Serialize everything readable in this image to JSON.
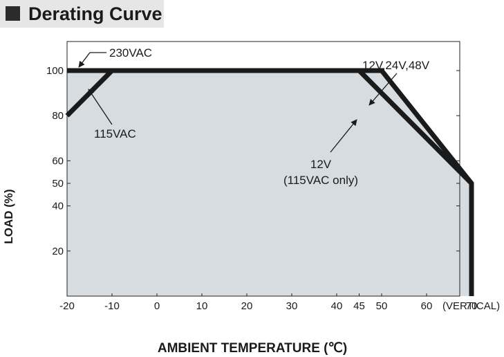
{
  "header": {
    "title": "Derating Curve"
  },
  "colors": {
    "area_fill": "#d7dce0",
    "curve": "#1a1a1a",
    "header_bg": "#e6e6e6",
    "header_square": "#2b2b2b"
  },
  "chart_data": {
    "type": "area",
    "title": "Derating Curve",
    "xlabel": "AMBIENT TEMPERATURE (℃)",
    "ylabel": "LOAD (%)",
    "xlim": [
      -20,
      70
    ],
    "ylim": [
      0,
      110
    ],
    "x_ticks": [
      "-20",
      "-10",
      "0",
      "10",
      "20",
      "30",
      "40",
      "45",
      "50",
      "60",
      "70"
    ],
    "x_tick_values": [
      -20,
      -10,
      0,
      10,
      20,
      30,
      40,
      45,
      50,
      60,
      70
    ],
    "x_suffix": "(VERTICAL)",
    "y_ticks": [
      "100",
      "80",
      "60",
      "50",
      "40",
      "20"
    ],
    "y_tick_values": [
      100,
      80,
      60,
      50,
      40,
      20
    ],
    "grid": false,
    "series": [
      {
        "name": "230VAC",
        "x": [
          -20,
          50,
          70,
          70
        ],
        "y": [
          100,
          100,
          50,
          0
        ]
      },
      {
        "name": "115VAC",
        "x": [
          -20,
          -10
        ],
        "y": [
          80,
          100
        ]
      },
      {
        "name": "12V (115VAC only)",
        "x": [
          45,
          70
        ],
        "y": [
          100,
          50
        ]
      }
    ],
    "annotations": [
      {
        "id": "a230",
        "text": "230VAC"
      },
      {
        "id": "a115",
        "text": "115VAC"
      },
      {
        "id": "a12v",
        "text": "12V,24V,48V"
      },
      {
        "id": "a12only_1",
        "text": "12V"
      },
      {
        "id": "a12only_2",
        "text": "(115VAC only)"
      }
    ]
  }
}
